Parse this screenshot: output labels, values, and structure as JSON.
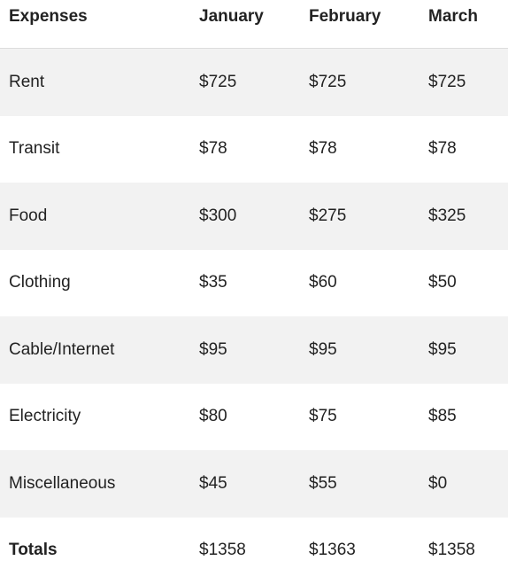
{
  "table": {
    "headers": [
      "Expenses",
      "January",
      "February",
      "March"
    ],
    "rows": [
      [
        "Rent",
        "$725",
        "$725",
        "$725"
      ],
      [
        "Transit",
        "$78",
        "$78",
        "$78"
      ],
      [
        "Food",
        "$300",
        "$275",
        "$325"
      ],
      [
        "Clothing",
        "$35",
        "$60",
        "$50"
      ],
      [
        "Cable/Internet",
        "$95",
        "$95",
        "$95"
      ],
      [
        "Electricity",
        "$80",
        "$75",
        "$85"
      ],
      [
        "Miscellaneous",
        "$45",
        "$55",
        "$0"
      ],
      [
        "Totals",
        "$1358",
        "$1363",
        "$1358"
      ]
    ],
    "colors": {
      "stripe": "#f2f2f2",
      "text": "#222222",
      "divider": "#dcdcdc"
    }
  }
}
